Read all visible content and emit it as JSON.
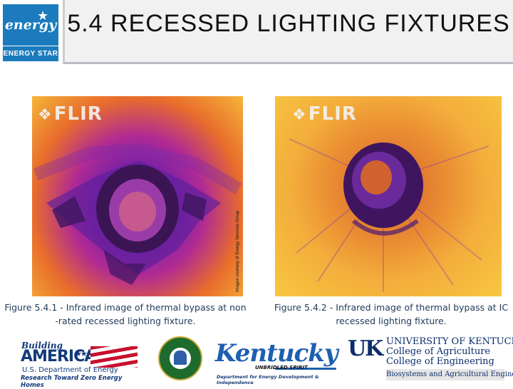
{
  "header": {
    "logo_energy_star": {
      "script_text": "energy",
      "label": "ENERGY STAR",
      "color": "#1b7bbd"
    },
    "title": "5.4  RECESSED LIGHTING FIXTURES"
  },
  "images": {
    "left": {
      "brand": "FLIR",
      "description": "Infrared image of thermal bypass at non-rated recessed lighting fixture"
    },
    "right": {
      "brand": "FLIR",
      "description": "Infrared image of thermal bypass at IC recessed lighting fixture"
    }
  },
  "credit": "Images courtesy of Energy Services Group",
  "captions": {
    "left_line1": "Figure 5.4.1 - Infrared image of thermal bypass at non",
    "left_line2": "-rated recessed lighting fixture.",
    "right_line1": "Figure 5.4.2 - Infrared image of thermal bypass at IC",
    "right_line2": "recessed lighting fixture."
  },
  "logos": {
    "building_america": {
      "script": "Building",
      "word": "AMERICA",
      "dept": "U.S. Department of Energy",
      "tagline": "Research Toward Zero Energy Homes"
    },
    "doe_seal": {
      "name": "department-of-energy-seal"
    },
    "kentucky": {
      "word": "Kentucky",
      "tagline": "UNBRIDLED SPIRIT",
      "dept": "Department for Energy Development & Independence"
    },
    "uk": {
      "mark": "UK",
      "line1": "UNIVERSITY OF KENTUCKY",
      "line2": "College of Agriculture",
      "line3": "College of Engineering",
      "line4": "Biosystems and Agricultural Engineering"
    }
  },
  "colors": {
    "accent": "#1b7bbd",
    "caption": "#1f3a5a",
    "header_bg": "#f1f1f1"
  }
}
